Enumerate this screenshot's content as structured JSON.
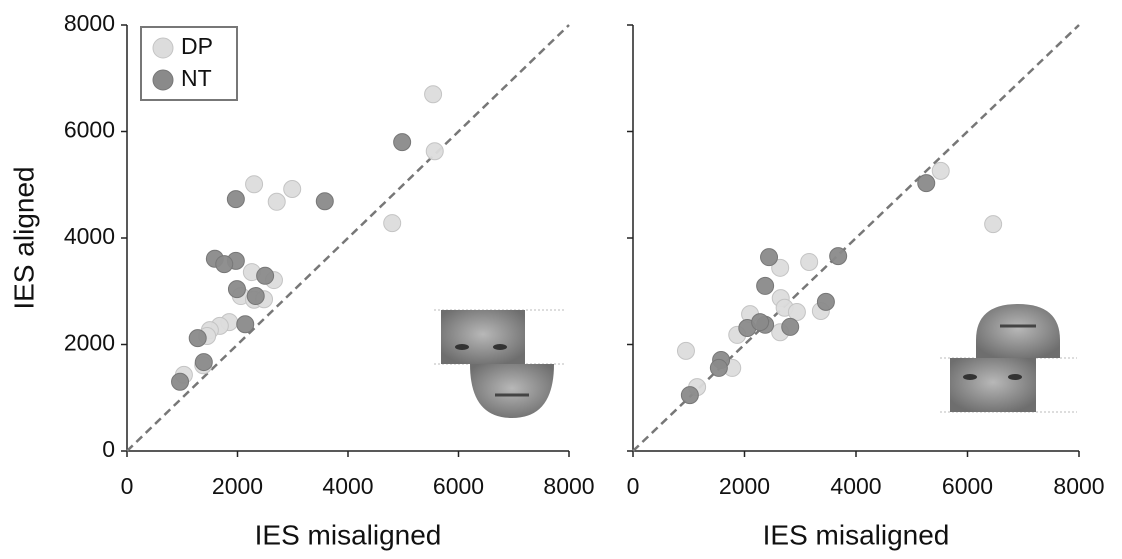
{
  "chart_data": [
    {
      "type": "scatter",
      "x_label": "IES misaligned",
      "y_label": "IES aligned",
      "xlim": [
        0,
        8000
      ],
      "ylim": [
        0,
        8000
      ],
      "xticks": [
        0,
        2000,
        4000,
        6000,
        8000
      ],
      "yticks": [
        0,
        2000,
        4000,
        6000,
        8000
      ],
      "diagonal": true,
      "legend": "upper left",
      "series": [
        {
          "name": "DP",
          "color": "#dcdcdc",
          "x": [
            5540,
            5570,
            2300,
            2990,
            2710,
            4800,
            2260,
            2660,
            2060,
            2300,
            2480,
            1850,
            1680,
            1500,
            1450,
            1030,
            1380
          ],
          "y": [
            6700,
            5630,
            5010,
            4920,
            4680,
            4280,
            3360,
            3210,
            2910,
            2840,
            2850,
            2420,
            2350,
            2270,
            2160,
            1430,
            1610
          ]
        },
        {
          "name": "NT",
          "color": "#8a8a8a",
          "x": [
            4980,
            1970,
            3580,
            1590,
            1970,
            1760,
            2500,
            1990,
            2330,
            2140,
            1280,
            1390,
            960
          ],
          "y": [
            5800,
            4730,
            4690,
            3610,
            3570,
            3510,
            3290,
            3040,
            2910,
            2380,
            2120,
            1670,
            1300
          ]
        }
      ]
    },
    {
      "type": "scatter",
      "x_label": "IES misaligned",
      "xlim": [
        0,
        8000
      ],
      "ylim": [
        0,
        8000
      ],
      "xticks": [
        0,
        2000,
        4000,
        6000,
        8000
      ],
      "diagonal": true,
      "series": [
        {
          "name": "DP",
          "color": "#dcdcdc",
          "x": [
            5520,
            6460,
            2640,
            3160,
            2650,
            2720,
            2940,
            3370,
            2100,
            2640,
            1870,
            950,
            1780,
            1150
          ],
          "y": [
            5260,
            4260,
            3440,
            3550,
            2870,
            2690,
            2610,
            2630,
            2570,
            2230,
            2180,
            1880,
            1560,
            1200
          ]
        },
        {
          "name": "NT",
          "color": "#8a8a8a",
          "x": [
            5260,
            2440,
            3680,
            2370,
            3460,
            2820,
            2370,
            2050,
            2280,
            1580,
            1540,
            1020
          ],
          "y": [
            5030,
            3640,
            3660,
            3100,
            2800,
            2330,
            2370,
            2310,
            2420,
            1710,
            1560,
            1050
          ]
        }
      ]
    }
  ]
}
